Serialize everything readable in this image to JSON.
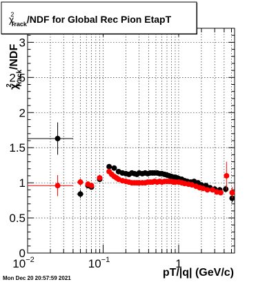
{
  "chart_data": {
    "type": "scatter",
    "title": "χ²Track/NDF for Global Rec Pion EtapT",
    "title_parts": {
      "chi": "χ",
      "sup": "2",
      "sub": "Track",
      "rest": "/NDF for Global Rec Pion EtapT"
    },
    "xlabel": "pT/|q| (GeV/c)",
    "ylabel": "χ²Track/NDF",
    "ylabel_parts": {
      "chi": "χ",
      "sup": "2",
      "sub": "Track",
      "rest": "/NDF"
    },
    "x_scale": "log",
    "xlim": [
      0.01,
      5.5
    ],
    "ylim": [
      0,
      3.2
    ],
    "grid": true,
    "x_tick_labels": [
      {
        "value": 0.01,
        "base": "10",
        "exp": "−2"
      },
      {
        "value": 0.1,
        "base": "10",
        "exp": "−1"
      },
      {
        "value": 1,
        "base": "1",
        "exp": ""
      }
    ],
    "y_ticks": [
      0,
      0.5,
      1,
      1.5,
      2,
      2.5,
      3
    ],
    "y_tick_labels": [
      "0",
      "0.5",
      "1",
      "1.5",
      "2",
      "2.5",
      "3"
    ],
    "series": [
      {
        "color": "#000000",
        "points": [
          {
            "x": 0.025,
            "y": 1.63,
            "xerr": [
              0.01,
              0.04
            ],
            "yerr": 0.23
          },
          {
            "x": 0.05,
            "y": 0.84,
            "xerr": [
              0.045,
              0.055
            ],
            "yerr": 0.06
          },
          {
            "x": 0.063,
            "y": 0.96,
            "xerr": [
              0.058,
              0.068
            ],
            "yerr": 0.04
          },
          {
            "x": 0.07,
            "y": 0.94,
            "xerr": [
              0.067,
              0.073
            ],
            "yerr": 0.04
          },
          {
            "x": 0.09,
            "y": 1.05,
            "xerr": [
              0.085,
              0.095
            ],
            "yerr": 0.03
          },
          {
            "x": 0.12,
            "y": 1.23,
            "xerr": [
              0.115,
              0.125
            ],
            "yerr": 0.02
          },
          {
            "x": 0.14,
            "y": 1.21,
            "yerr": 0.02
          },
          {
            "x": 0.16,
            "y": 1.16
          },
          {
            "x": 0.18,
            "y": 1.14
          },
          {
            "x": 0.2,
            "y": 1.13
          },
          {
            "x": 0.22,
            "y": 1.12
          },
          {
            "x": 0.24,
            "y": 1.14
          },
          {
            "x": 0.26,
            "y": 1.13
          },
          {
            "x": 0.28,
            "y": 1.12
          },
          {
            "x": 0.3,
            "y": 1.14
          },
          {
            "x": 0.33,
            "y": 1.13
          },
          {
            "x": 0.36,
            "y": 1.14
          },
          {
            "x": 0.39,
            "y": 1.13
          },
          {
            "x": 0.42,
            "y": 1.14
          },
          {
            "x": 0.45,
            "y": 1.14
          },
          {
            "x": 0.48,
            "y": 1.14
          },
          {
            "x": 0.52,
            "y": 1.14
          },
          {
            "x": 0.56,
            "y": 1.13
          },
          {
            "x": 0.6,
            "y": 1.13
          },
          {
            "x": 0.65,
            "y": 1.12
          },
          {
            "x": 0.7,
            "y": 1.11
          },
          {
            "x": 0.75,
            "y": 1.1
          },
          {
            "x": 0.8,
            "y": 1.09
          },
          {
            "x": 0.85,
            "y": 1.08
          },
          {
            "x": 0.9,
            "y": 1.08
          },
          {
            "x": 0.95,
            "y": 1.07
          },
          {
            "x": 1.0,
            "y": 1.06
          },
          {
            "x": 1.1,
            "y": 1.05
          },
          {
            "x": 1.2,
            "y": 1.03
          },
          {
            "x": 1.3,
            "y": 1.02
          },
          {
            "x": 1.45,
            "y": 1.01
          },
          {
            "x": 1.6,
            "y": 1.02,
            "yerr": 0.03
          },
          {
            "x": 1.8,
            "y": 1.0,
            "yerr": 0.03
          },
          {
            "x": 2.0,
            "y": 0.97,
            "yerr": 0.03
          },
          {
            "x": 2.3,
            "y": 0.96,
            "yerr": 0.03
          },
          {
            "x": 2.6,
            "y": 0.93,
            "yerr": 0.03
          },
          {
            "x": 3.0,
            "y": 0.91,
            "yerr": 0.03
          },
          {
            "x": 3.5,
            "y": 0.9,
            "yerr": 0.04
          },
          {
            "x": 4.2,
            "y": 0.91,
            "yerr": 0.05
          },
          {
            "x": 5.1,
            "y": 0.78,
            "yerr": 0.06
          }
        ]
      },
      {
        "color": "#ff0000",
        "points": [
          {
            "x": 0.025,
            "y": 0.96,
            "xerr": [
              0.01,
              0.04
            ],
            "yerr": 0.15
          },
          {
            "x": 0.05,
            "y": 1.01,
            "xerr": [
              0.045,
              0.055
            ],
            "yerr": 0.05
          },
          {
            "x": 0.063,
            "y": 0.98,
            "xerr": [
              0.058,
              0.068
            ],
            "yerr": 0.04
          },
          {
            "x": 0.07,
            "y": 0.96,
            "xerr": [
              0.067,
              0.073
            ],
            "yerr": 0.04
          },
          {
            "x": 0.09,
            "y": 1.07,
            "xerr": [
              0.085,
              0.095
            ],
            "yerr": 0.03
          },
          {
            "x": 0.12,
            "y": 1.16,
            "xerr": [
              0.115,
              0.125
            ],
            "yerr": 0.02
          },
          {
            "x": 0.13,
            "y": 1.12
          },
          {
            "x": 0.14,
            "y": 1.09
          },
          {
            "x": 0.15,
            "y": 1.07
          },
          {
            "x": 0.16,
            "y": 1.05
          },
          {
            "x": 0.18,
            "y": 1.03
          },
          {
            "x": 0.2,
            "y": 1.02
          },
          {
            "x": 0.22,
            "y": 1.01
          },
          {
            "x": 0.24,
            "y": 1.0
          },
          {
            "x": 0.26,
            "y": 1.0
          },
          {
            "x": 0.28,
            "y": 1.0
          },
          {
            "x": 0.3,
            "y": 1.0
          },
          {
            "x": 0.33,
            "y": 1.0
          },
          {
            "x": 0.36,
            "y": 1.0
          },
          {
            "x": 0.39,
            "y": 1.01
          },
          {
            "x": 0.42,
            "y": 1.01
          },
          {
            "x": 0.45,
            "y": 1.01
          },
          {
            "x": 0.48,
            "y": 1.02
          },
          {
            "x": 0.52,
            "y": 1.01
          },
          {
            "x": 0.56,
            "y": 1.02
          },
          {
            "x": 0.6,
            "y": 1.01
          },
          {
            "x": 0.65,
            "y": 1.02
          },
          {
            "x": 0.7,
            "y": 1.02
          },
          {
            "x": 0.75,
            "y": 1.02
          },
          {
            "x": 0.8,
            "y": 1.02
          },
          {
            "x": 0.85,
            "y": 1.01
          },
          {
            "x": 0.9,
            "y": 1.01
          },
          {
            "x": 1.0,
            "y": 1.01
          },
          {
            "x": 1.1,
            "y": 1.0
          },
          {
            "x": 1.2,
            "y": 0.99
          },
          {
            "x": 1.35,
            "y": 0.98
          },
          {
            "x": 1.5,
            "y": 0.97
          },
          {
            "x": 1.7,
            "y": 0.95,
            "yerr": 0.03
          },
          {
            "x": 1.9,
            "y": 0.93,
            "yerr": 0.03
          },
          {
            "x": 2.1,
            "y": 0.92,
            "yerr": 0.03
          },
          {
            "x": 2.4,
            "y": 0.9,
            "yerr": 0.03
          },
          {
            "x": 2.8,
            "y": 0.9,
            "yerr": 0.03
          },
          {
            "x": 3.2,
            "y": 0.87,
            "yerr": 0.04
          },
          {
            "x": 3.6,
            "y": 0.86,
            "yerr": 0.04
          },
          {
            "x": 4.3,
            "y": 1.1,
            "yerr": 0.2
          },
          {
            "x": 5.1,
            "y": 0.86,
            "yerr": 0.08
          }
        ]
      }
    ]
  },
  "footer": {
    "timestamp": "Mon Dec 20 20:57:59 2021"
  }
}
